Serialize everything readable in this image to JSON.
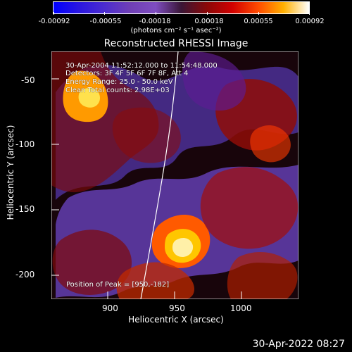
{
  "colorbar": {
    "ticks": [
      "-0.00092",
      "-0.00055",
      "-0.00018",
      "0.00018",
      "0.00055",
      "0.00092"
    ],
    "units": "(photons cm⁻² s⁻¹ asec⁻²)",
    "colors": [
      "#0000ff",
      "#4b2ccf",
      "#7e4dc0",
      "#3a1636",
      "#d10000",
      "#ff4a00",
      "#ffb000",
      "#ffffff"
    ]
  },
  "chart_data": {
    "type": "heatmap",
    "title": "Reconstructed RHESSI Image",
    "xlabel": "Heliocentric X (arcsec)",
    "ylabel": "Heliocentric Y (arcsec)",
    "xlim": [
      860,
      1045
    ],
    "ylim": [
      -222,
      -35
    ],
    "xticks": [
      900,
      950,
      1000
    ],
    "yticks": [
      -50,
      -100,
      -150,
      -200
    ],
    "annotations": [
      "30-Apr-2004 11:52:12.000 to 11:54:48.000",
      "Detectors: 3F 4F 5F 6F 7F 8F, Att 4",
      "Energy Range: 25.0 - 50.0 keV",
      "Clean    Total counts: 2.98E+03"
    ],
    "peak_label": "Position of Peak = [950,-182]",
    "peak": [
      950,
      -182
    ]
  },
  "footer": {
    "timestamp": "30-Apr-2022 08:27"
  }
}
